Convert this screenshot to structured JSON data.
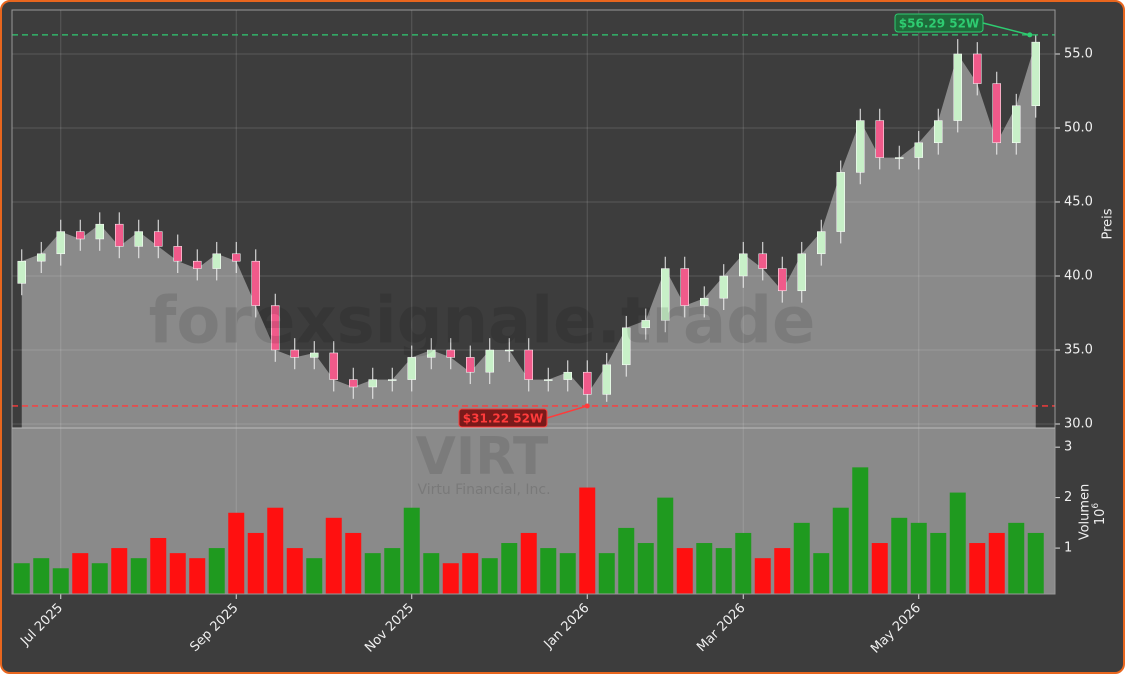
{
  "chart_data": {
    "type": "candlestick",
    "watermark": "forexsignale.trade",
    "ticker": "VIRT",
    "company": "Virtu Financial, Inc.",
    "y_label": "Preis",
    "volume_label": "Volumen",
    "volume_offset_text": {
      "base": "10",
      "exponent": "6"
    },
    "categories": [
      null,
      null,
      "Jul 2025",
      null,
      null,
      null,
      null,
      null,
      null,
      null,
      null,
      "Sep 2025",
      null,
      null,
      null,
      null,
      null,
      null,
      null,
      null,
      "Nov 2025",
      null,
      null,
      null,
      null,
      null,
      null,
      null,
      null,
      "Jan 2026",
      null,
      null,
      null,
      null,
      null,
      null,
      null,
      "Mar 2026",
      null,
      null,
      null,
      null,
      null,
      null,
      null,
      null,
      "May 2026",
      null,
      null,
      null,
      null,
      null,
      null
    ],
    "open": [
      39.5,
      41,
      41.5,
      43,
      42.5,
      43.5,
      42,
      43,
      42,
      41,
      40.5,
      41.5,
      41,
      38,
      35,
      34.5,
      34.8,
      33,
      32.5,
      33,
      33,
      34.5,
      35,
      34.5,
      33.5,
      35,
      35,
      33,
      33,
      33.5,
      32,
      34,
      36.5,
      37,
      40.5,
      38,
      38.5,
      40,
      41.5,
      40.5,
      39,
      41.5,
      43,
      47,
      50.5,
      48,
      48,
      49,
      50.5,
      55,
      53,
      49,
      51.5
    ],
    "high": [
      41.8,
      42.3,
      43.8,
      43.8,
      44.3,
      44.3,
      43.8,
      43.8,
      42.8,
      41.8,
      42.3,
      42.3,
      41.8,
      38.8,
      35.8,
      35.6,
      35.6,
      33.8,
      33.8,
      33.8,
      35.3,
      35.8,
      35.8,
      35.3,
      35.8,
      35.8,
      35.8,
      33.8,
      34.3,
      34.3,
      34.8,
      37.3,
      37.8,
      41.3,
      41.3,
      39.3,
      40.8,
      42.3,
      42.3,
      41.3,
      42.3,
      43.8,
      47.8,
      51.3,
      51.3,
      48.8,
      49.8,
      51.3,
      56.0,
      55.8,
      53.8,
      52.3,
      56.29
    ],
    "low": [
      38.7,
      40.2,
      40.7,
      41.7,
      41.7,
      41.2,
      41.2,
      41.2,
      40.2,
      39.7,
      39.7,
      40.2,
      37.2,
      34.2,
      33.7,
      33.7,
      32.2,
      31.7,
      31.7,
      32.2,
      32.2,
      33.7,
      33.7,
      32.7,
      32.7,
      34.2,
      32.2,
      32.2,
      32.2,
      31.22,
      31.5,
      33.2,
      35.7,
      36.2,
      37.2,
      37.2,
      37.7,
      39.2,
      39.7,
      38.2,
      38.2,
      40.7,
      42.2,
      46.2,
      47.2,
      47.2,
      47.2,
      48.2,
      49.7,
      52.2,
      48.2,
      48.2,
      50.7
    ],
    "close": [
      41,
      41.5,
      43,
      42.5,
      43.5,
      42,
      43,
      42,
      41,
      40.5,
      41.5,
      41,
      38,
      35,
      34.5,
      34.8,
      33,
      32.5,
      33,
      33,
      34.5,
      35,
      34.5,
      33.5,
      35,
      35,
      33,
      33,
      33.5,
      32,
      34,
      36.5,
      37,
      40.5,
      38,
      38.5,
      40,
      41.5,
      40.5,
      39,
      41.5,
      43,
      47,
      50.5,
      48,
      48,
      49,
      50.5,
      55,
      53,
      49,
      51.5,
      55.8
    ],
    "volume": [
      0.7,
      0.8,
      0.6,
      0.9,
      0.7,
      1.0,
      0.8,
      1.2,
      0.9,
      0.8,
      1.0,
      1.7,
      1.3,
      1.8,
      1.0,
      0.8,
      1.6,
      1.3,
      0.9,
      1.0,
      1.8,
      0.9,
      0.7,
      0.9,
      0.8,
      1.1,
      1.3,
      1.0,
      0.9,
      2.2,
      0.9,
      1.4,
      1.1,
      2.0,
      1.0,
      1.1,
      1.0,
      1.3,
      0.8,
      1.0,
      1.5,
      0.9,
      1.8,
      2.6,
      1.1,
      1.6,
      1.5,
      1.3,
      2.1,
      1.1,
      1.3,
      1.5,
      1.3
    ],
    "up_color": "#1f9a1f",
    "down_color": "#ff1010",
    "area_color": "#8a8a8a",
    "ylim": [
      29.73,
      57.97
    ],
    "yticks": [
      {
        "value": 30,
        "label": "30.0"
      },
      {
        "value": 35,
        "label": "35.0"
      },
      {
        "value": 40,
        "label": "40.0"
      },
      {
        "value": 45,
        "label": "45.0"
      },
      {
        "value": 50,
        "label": "50.0"
      },
      {
        "value": 55,
        "label": "55.0"
      }
    ],
    "volume_ylim": [
      0.09,
      3.38
    ],
    "volume_ticks": [
      1,
      2,
      3
    ],
    "grid": true,
    "annotations": [
      {
        "label": "$56.29 52W",
        "value": 56.29,
        "color": "#2ecc71",
        "bg": "#1e6b3a"
      },
      {
        "label": "$31.22 52W",
        "value": 31.22,
        "color": "#ff3b3b",
        "bg": "#7a1a1a"
      }
    ]
  }
}
